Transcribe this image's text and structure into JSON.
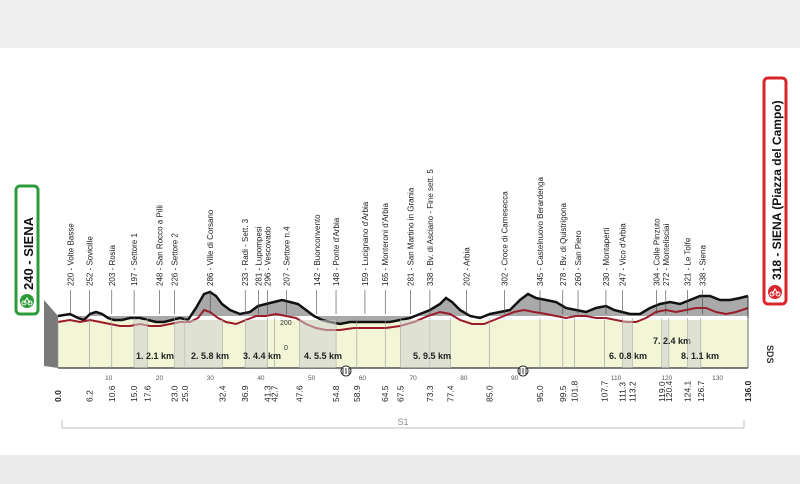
{
  "start": {
    "km_label": "240 - SIENA",
    "icon": "cyclist-icon",
    "color": "#2e9b3a"
  },
  "finish": {
    "km_label": "318 - SIENA (Piazza del Campo)",
    "icon": "cyclist-icon",
    "color": "#d9262c"
  },
  "distances": [
    "0.0",
    "6.2",
    "10.6",
    "15.0",
    "17.6",
    "23.0",
    "25.0",
    "32.4",
    "36.9",
    "41.3",
    "42.7",
    "47.6",
    "54.8",
    "58.9",
    "64.5",
    "67.5",
    "73.3",
    "77.4",
    "85.0",
    "95.0",
    "99.5",
    "101.8",
    "107.7",
    "111.3",
    "113.2",
    "119.0",
    "120.4",
    "124.1",
    "126.7",
    "136.0"
  ],
  "axis_ticks": [
    "10",
    "20",
    "30",
    "40",
    "50",
    "60",
    "70",
    "80",
    "90",
    "110",
    "120",
    "130"
  ],
  "places": [
    "220 - Volte Basse",
    "252 - Sovicille",
    "203 - Rosia",
    "197 - Settore 1",
    "248 - San Rocco a Pilli",
    "226 - Settore 2",
    "286 - Ville di Corsano",
    "233 - Radi - Sett. 3",
    "281 - Lupompesi",
    "296 - Vescovado",
    "207 - Settore n.4",
    "142 - Buonconvento",
    "148 - Ponte d'Arbia",
    "159 - Lucignano d'Arbia",
    "165 - Monteroni d'Arbia",
    "281 - San Martino in Grania",
    "338 - Bv. di Asciano - Fine sett. 5",
    "202 - Arbia",
    "302 - Croce di Camesecca",
    "345 - Castelnuovo Berardenga",
    "278 - Bv. di Quistrigona",
    "260 - San Piero",
    "230 - Montaperti",
    "247 - Vico d'Arbia",
    "304 - Colle Pinzuto",
    "272 - Montelisciai",
    "321 - Le Tolfe",
    "338 - Siena"
  ],
  "sectors": [
    "1. 2.1 km",
    "2. 5.8 km",
    "3. 4.4 km",
    "4. 5.5 km",
    "5. 9.5 km",
    "6. 0.8 km",
    "7. 2.4 km",
    "8. 1.1 km"
  ],
  "alt_200": "200",
  "alt_0": "0",
  "brand": "SDS",
  "zone_label": "S1"
}
